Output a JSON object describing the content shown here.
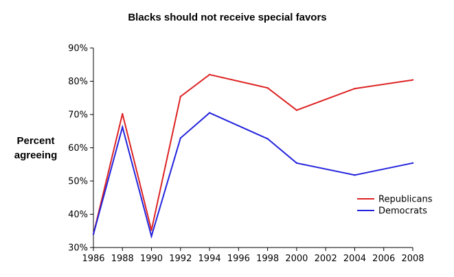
{
  "chart_data": {
    "type": "line",
    "title": "Blacks should not receive special favors",
    "xlabel": "",
    "ylabel_lines": [
      "Percent",
      "agreeing"
    ],
    "xlim": [
      1986,
      2008
    ],
    "ylim": [
      30,
      90
    ],
    "x_ticks": [
      1986,
      1988,
      1990,
      1992,
      1994,
      1996,
      1998,
      2000,
      2002,
      2004,
      2006,
      2008
    ],
    "y_ticks": [
      {
        "value": 30,
        "label": "30%"
      },
      {
        "value": 40,
        "label": "40%"
      },
      {
        "value": 50,
        "label": "50%"
      },
      {
        "value": 60,
        "label": "60%"
      },
      {
        "value": 70,
        "label": "70%"
      },
      {
        "value": 80,
        "label": "80%"
      },
      {
        "value": 90,
        "label": "90%"
      }
    ],
    "grid": false,
    "legend_position": "lower-right",
    "series": [
      {
        "name": "Republicans",
        "color": "#dd2222",
        "points": [
          [
            1986,
            34
          ],
          [
            1988,
            70.2
          ],
          [
            1990,
            35.2
          ],
          [
            1992,
            75.4
          ],
          [
            1994,
            82
          ],
          [
            1998,
            78
          ],
          [
            2000,
            71.3
          ],
          [
            2004,
            77.8
          ],
          [
            2008,
            80.4
          ]
        ]
      },
      {
        "name": "Democrats",
        "color": "#2222dd",
        "points": [
          [
            1986,
            34
          ],
          [
            1988,
            66.2
          ],
          [
            1990,
            33.4
          ],
          [
            1992,
            62.9
          ],
          [
            1994,
            70.5
          ],
          [
            1998,
            62.7
          ],
          [
            2000,
            55.4
          ],
          [
            2004,
            51.8
          ],
          [
            2008,
            55.4
          ]
        ]
      }
    ]
  }
}
